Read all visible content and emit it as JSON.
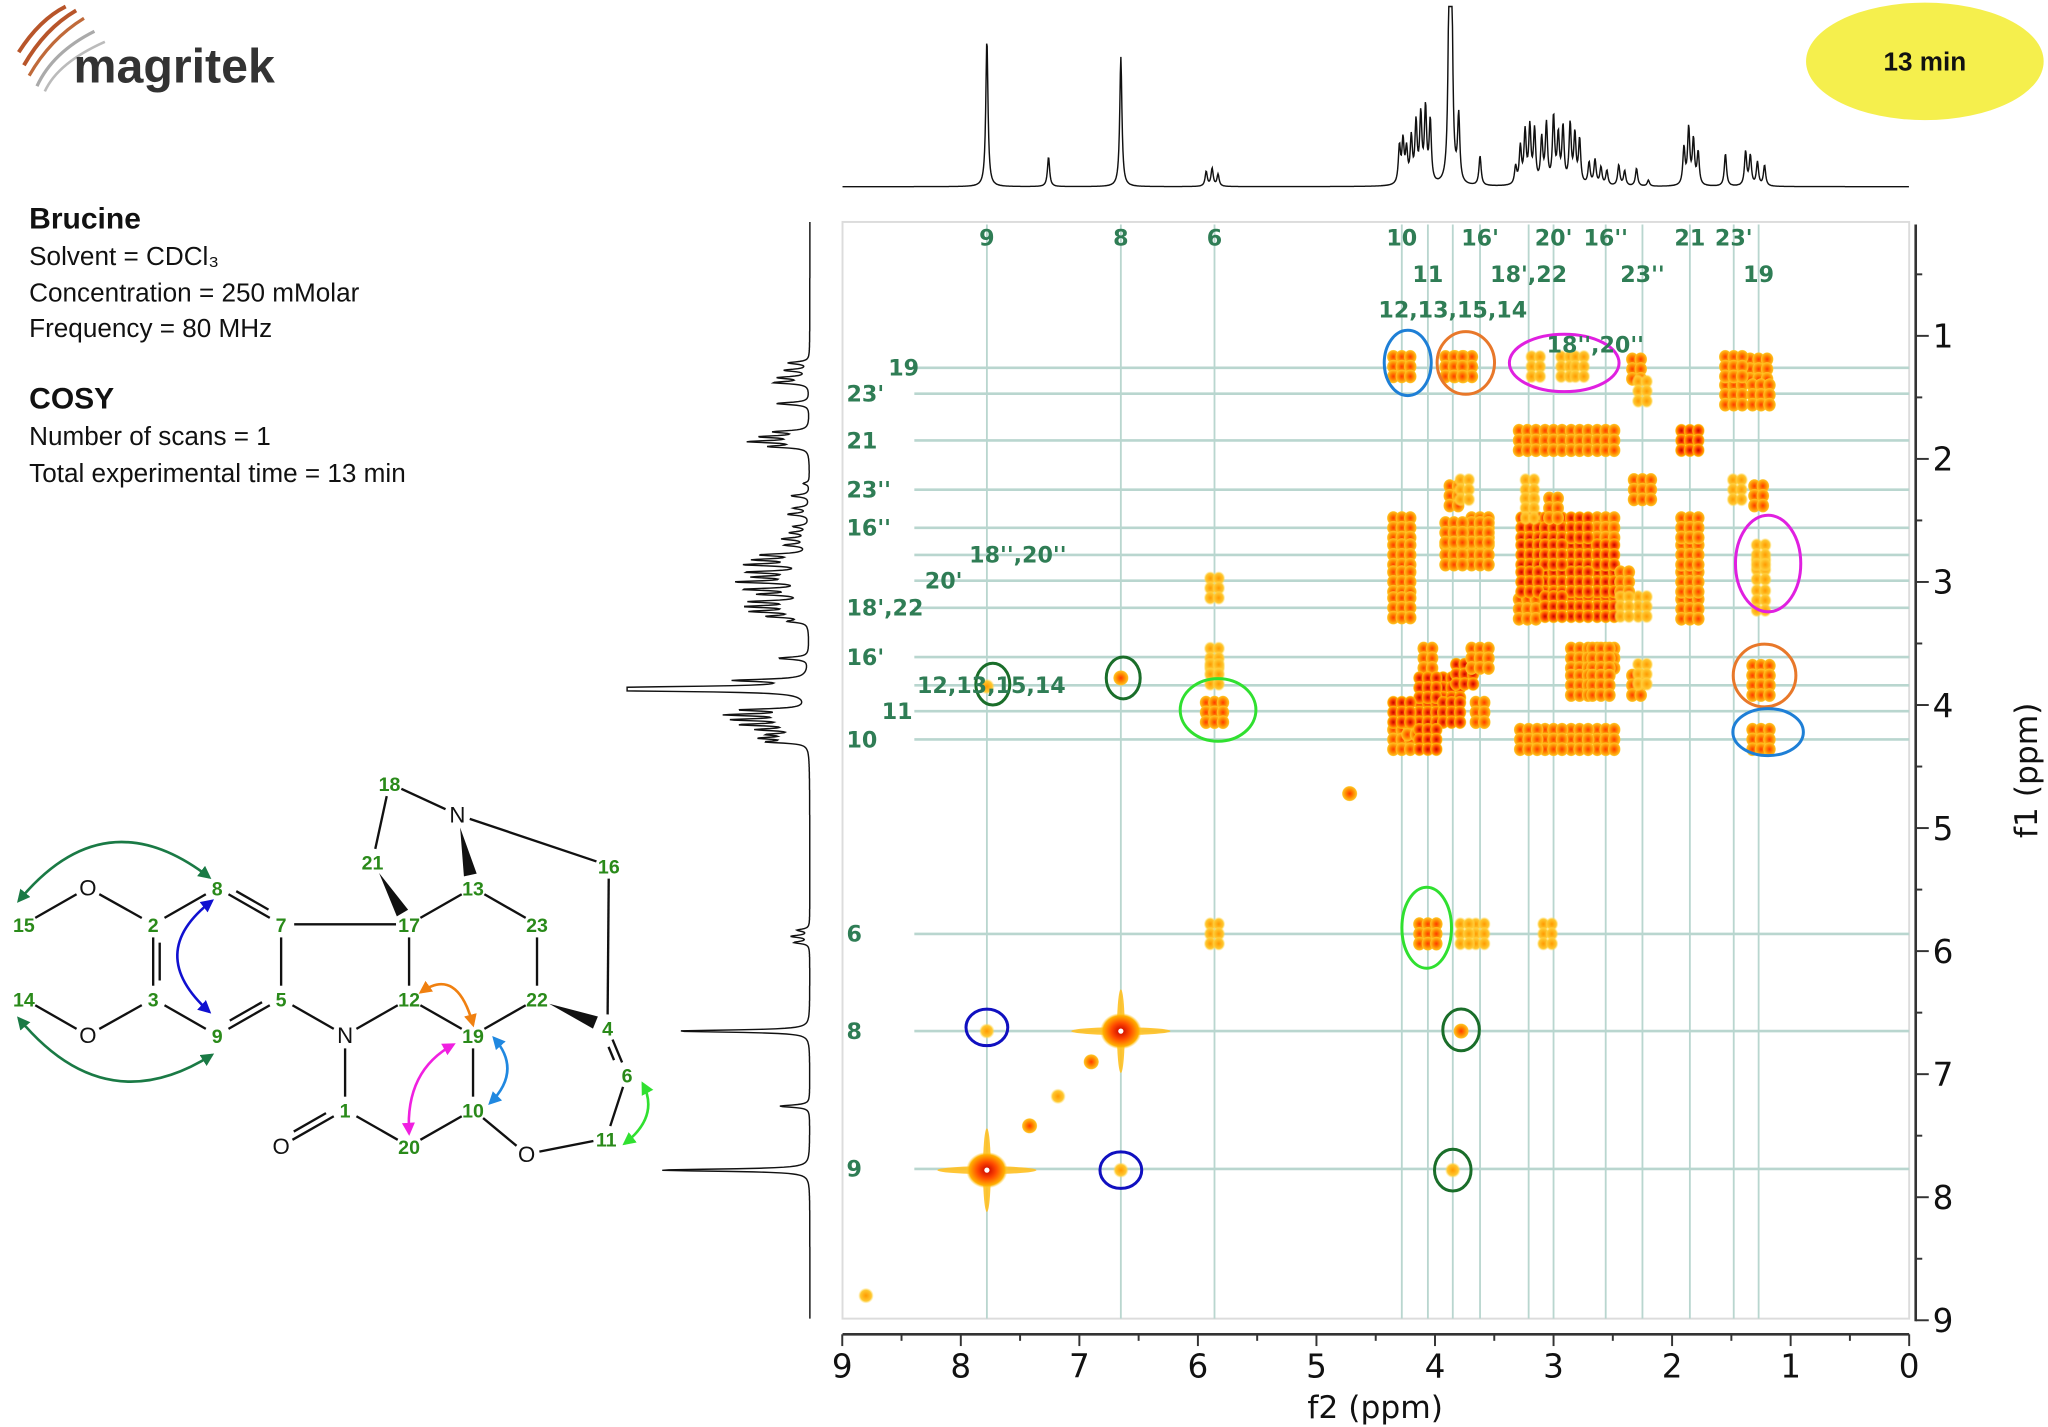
{
  "logo": {
    "text": "magritek"
  },
  "badge": {
    "text": "13 min",
    "color": "#f5ef4d"
  },
  "info": {
    "compound": "Brucine",
    "solvent": "Solvent = CDCl₃",
    "concentration": "Concentration = 250 mMolar",
    "frequency": "Frequency = 80 MHz",
    "experiment": "COSY",
    "scans": "Number of scans = 1",
    "total_time": "Total experimental time = 13 min"
  },
  "molecule": {
    "atoms": [
      "18",
      "N",
      "21",
      "16",
      "13",
      "15",
      "O",
      "8",
      "2",
      "7",
      "17",
      "23",
      "14",
      "3",
      "5",
      "12",
      "22",
      "4",
      "O",
      "9",
      "N",
      "19",
      "6",
      "10",
      "1",
      "11",
      "O",
      "20",
      "O"
    ],
    "arrow_colors": [
      "#1a7a45",
      "#1a7a45",
      "#1010d0",
      "#f08010",
      "#f020e0",
      "#2088e0",
      "#30e030"
    ]
  },
  "chart_data": {
    "type": "heatmap",
    "subtype": "2D COSY contour plot with 1D projections",
    "xlabel": "f2 (ppm)",
    "ylabel": "f1 (ppm)",
    "xlim": [
      9,
      0
    ],
    "ylim": [
      0,
      9
    ],
    "x_ticks": [
      "9",
      "8",
      "7",
      "6",
      "5",
      "4",
      "3",
      "2",
      "1",
      "0"
    ],
    "y_ticks": [
      "1",
      "2",
      "3",
      "4",
      "5",
      "6",
      "7",
      "8",
      "9"
    ],
    "grid": "assignment lines",
    "f2_assignments": [
      {
        "label": "9",
        "ppm": 7.78
      },
      {
        "label": "8",
        "ppm": 6.65
      },
      {
        "label": "6",
        "ppm": 5.86
      },
      {
        "label": "10",
        "ppm": 4.28
      },
      {
        "label": "16'",
        "ppm": 3.62
      },
      {
        "label": "20'",
        "ppm": 3.0
      },
      {
        "label": "16''",
        "ppm": 2.56
      },
      {
        "label": "21",
        "ppm": 1.85
      },
      {
        "label": "23'",
        "ppm": 1.48
      },
      {
        "label": "11",
        "ppm": 4.06
      },
      {
        "label": "18',22",
        "ppm": 3.21
      },
      {
        "label": "23''",
        "ppm": 2.25
      },
      {
        "label": "19",
        "ppm": 1.27
      },
      {
        "label": "12,13,15,14",
        "ppm": 3.85
      },
      {
        "label": "18'',20''",
        "ppm": 2.78
      }
    ],
    "f1_assignments": [
      {
        "label": "19",
        "ppm": 1.26
      },
      {
        "label": "23'",
        "ppm": 1.47
      },
      {
        "label": "21",
        "ppm": 1.85
      },
      {
        "label": "23''",
        "ppm": 2.25
      },
      {
        "label": "16''",
        "ppm": 2.56
      },
      {
        "label": "18'',20''",
        "ppm": 2.78
      },
      {
        "label": "20'",
        "ppm": 2.99
      },
      {
        "label": "18',22",
        "ppm": 3.21
      },
      {
        "label": "16'",
        "ppm": 3.61
      },
      {
        "label": "12,13,15,14",
        "ppm": 3.84
      },
      {
        "label": "11",
        "ppm": 4.05
      },
      {
        "label": "10",
        "ppm": 4.28
      },
      {
        "label": "6",
        "ppm": 5.86
      },
      {
        "label": "8",
        "ppm": 6.65
      },
      {
        "label": "9",
        "ppm": 7.77
      }
    ],
    "diagonal_peaks": [
      [
        7.78,
        1.0
      ],
      [
        6.65,
        1.0
      ],
      [
        6.9,
        0.6
      ],
      [
        7.18,
        0.5
      ],
      [
        7.42,
        0.6
      ],
      [
        8.8,
        0.4
      ],
      [
        5.86,
        0.5
      ],
      [
        4.72,
        0.6
      ],
      [
        4.28,
        0.8
      ],
      [
        4.16,
        0.8
      ],
      [
        4.06,
        0.9
      ],
      [
        3.86,
        1.0
      ],
      [
        3.75,
        0.9
      ],
      [
        3.62,
        0.7
      ],
      [
        3.22,
        0.8
      ],
      [
        3.0,
        0.9
      ],
      [
        2.78,
        0.9
      ],
      [
        2.56,
        0.8
      ],
      [
        2.25,
        0.7
      ],
      [
        1.85,
        0.9
      ],
      [
        1.48,
        0.7
      ],
      [
        1.27,
        0.8
      ]
    ],
    "cross_peaks": [
      [
        7.78,
        6.65,
        0.5
      ],
      [
        7.78,
        3.85,
        0.5
      ],
      [
        6.65,
        3.78,
        0.55
      ],
      [
        5.86,
        4.06,
        0.8
      ],
      [
        5.86,
        3.62,
        0.5
      ],
      [
        5.86,
        3.75,
        0.4
      ],
      [
        5.86,
        3.05,
        0.3
      ],
      [
        4.28,
        1.25,
        0.7
      ],
      [
        3.76,
        1.25,
        0.8
      ],
      [
        4.28,
        2.56,
        0.8
      ],
      [
        4.28,
        2.78,
        0.8
      ],
      [
        4.28,
        3.0,
        0.8
      ],
      [
        4.28,
        3.21,
        0.8
      ],
      [
        3.62,
        2.56,
        0.8
      ],
      [
        3.62,
        2.78,
        0.7
      ],
      [
        3.22,
        1.85,
        0.8
      ],
      [
        3.0,
        1.85,
        0.8
      ],
      [
        2.78,
        1.85,
        0.7
      ],
      [
        2.56,
        1.85,
        0.7
      ],
      [
        3.2,
        2.56,
        0.9
      ],
      [
        3.0,
        2.56,
        0.9
      ],
      [
        2.78,
        2.56,
        0.9
      ],
      [
        3.2,
        2.78,
        0.9
      ],
      [
        3.0,
        2.78,
        0.9
      ],
      [
        3.2,
        3.0,
        0.9
      ],
      [
        3.62,
        2.6,
        0.7
      ],
      [
        3.84,
        2.78,
        0.7
      ],
      [
        3.84,
        2.6,
        0.7
      ],
      [
        3.84,
        2.3,
        0.6
      ],
      [
        3.84,
        1.25,
        0.8
      ],
      [
        2.3,
        1.27,
        0.6
      ],
      [
        2.25,
        1.45,
        0.5
      ],
      [
        2.25,
        3.2,
        0.5
      ],
      [
        2.25,
        3.75,
        0.4
      ],
      [
        1.48,
        1.25,
        0.7
      ],
      [
        2.9,
        1.25,
        0.3
      ],
      [
        2.78,
        1.25,
        0.3
      ],
      [
        3.15,
        1.25,
        0.3
      ],
      [
        4.06,
        3.62,
        0.6
      ],
      [
        4.06,
        3.86,
        0.9
      ],
      [
        4.28,
        4.06,
        0.9
      ],
      [
        3.0,
        2.4,
        0.6
      ],
      [
        3.2,
        2.4,
        0.5
      ]
    ],
    "highlight_circles": [
      {
        "f2": 4.23,
        "f1": 1.22,
        "color": "#1e7fd6"
      },
      {
        "f2": 3.74,
        "f1": 1.22,
        "color": "#e8782a"
      },
      {
        "f2": 2.91,
        "f1": 1.22,
        "color": "#e020e0"
      },
      {
        "f2": 1.19,
        "f1": 2.85,
        "color": "#e020e0"
      },
      {
        "f2": 1.22,
        "f1": 3.76,
        "color": "#e8782a"
      },
      {
        "f2": 1.19,
        "f1": 4.22,
        "color": "#1e7fd6"
      },
      {
        "f2": 7.73,
        "f1": 3.83,
        "color": "#1a6e2a"
      },
      {
        "f2": 6.63,
        "f1": 3.78,
        "color": "#1a6e2a"
      },
      {
        "f2": 5.83,
        "f1": 4.04,
        "color": "#30e030"
      },
      {
        "f2": 4.07,
        "f1": 5.81,
        "color": "#30e030"
      },
      {
        "f2": 3.78,
        "f1": 6.64,
        "color": "#1a6e2a"
      },
      {
        "f2": 3.85,
        "f1": 7.78,
        "color": "#1a6e2a"
      },
      {
        "f2": 7.78,
        "f1": 6.62,
        "color": "#1010c0"
      },
      {
        "f2": 6.65,
        "f1": 7.78,
        "color": "#1010c0"
      }
    ],
    "projection_peaks": [
      [
        7.78,
        1.0
      ],
      [
        7.26,
        0.2
      ],
      [
        6.65,
        0.88
      ],
      [
        5.93,
        0.1
      ],
      [
        5.88,
        0.12
      ],
      [
        5.83,
        0.08
      ],
      [
        4.3,
        0.25
      ],
      [
        4.27,
        0.28
      ],
      [
        4.24,
        0.22
      ],
      [
        4.2,
        0.3
      ],
      [
        4.16,
        0.4
      ],
      [
        4.12,
        0.45
      ],
      [
        4.08,
        0.5
      ],
      [
        4.04,
        0.42
      ],
      [
        3.88,
        1.3
      ],
      [
        3.86,
        1.3
      ],
      [
        3.8,
        0.45
      ],
      [
        3.62,
        0.2
      ],
      [
        3.32,
        0.12
      ],
      [
        3.28,
        0.25
      ],
      [
        3.24,
        0.35
      ],
      [
        3.2,
        0.38
      ],
      [
        3.16,
        0.36
      ],
      [
        3.1,
        0.3
      ],
      [
        3.06,
        0.4
      ],
      [
        3.0,
        0.45
      ],
      [
        2.96,
        0.32
      ],
      [
        2.92,
        0.38
      ],
      [
        2.86,
        0.4
      ],
      [
        2.82,
        0.33
      ],
      [
        2.78,
        0.3
      ],
      [
        2.7,
        0.15
      ],
      [
        2.65,
        0.17
      ],
      [
        2.6,
        0.12
      ],
      [
        2.55,
        0.1
      ],
      [
        2.45,
        0.14
      ],
      [
        2.4,
        0.1
      ],
      [
        2.3,
        0.12
      ],
      [
        2.2,
        0.04
      ],
      [
        1.9,
        0.25
      ],
      [
        1.86,
        0.38
      ],
      [
        1.82,
        0.3
      ],
      [
        1.78,
        0.22
      ],
      [
        1.55,
        0.22
      ],
      [
        1.38,
        0.23
      ],
      [
        1.34,
        0.2
      ],
      [
        1.28,
        0.16
      ],
      [
        1.22,
        0.14
      ]
    ]
  }
}
